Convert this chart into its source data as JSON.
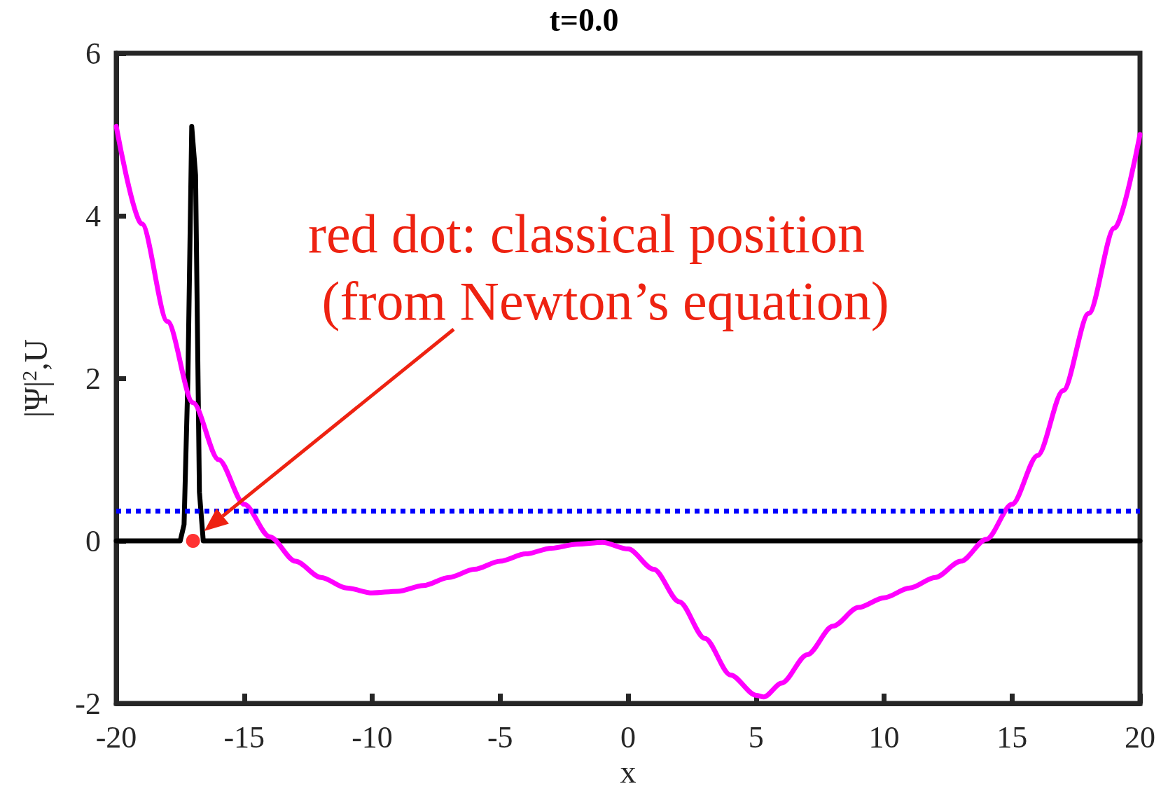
{
  "chart_data": {
    "type": "line",
    "title": "t=0.0",
    "xlabel": "x",
    "ylabel": "|Ψ|$^{2}$,U",
    "xlim": [
      -20,
      20
    ],
    "xticks": [
      -20,
      -15,
      -10,
      -5,
      0,
      5,
      10,
      15,
      20
    ],
    "ylim": [
      -2,
      6
    ],
    "yticks": [
      -2,
      0,
      2,
      4,
      6
    ],
    "grid": false,
    "series": [
      {
        "color": "#000000",
        "x": [
          -20,
          -17.5,
          -17.35,
          -17.2,
          -17.05,
          -16.9,
          -16.75,
          -16.6,
          20
        ],
        "values": [
          0,
          0,
          0.2,
          2,
          5.1,
          4.5,
          0.6,
          0,
          0
        ],
        "marker": "none",
        "line_style": "solid"
      },
      {
        "color": "#ff00ff",
        "x": [
          -20,
          -19,
          -18,
          -17,
          -16,
          -15,
          -14,
          -13,
          -12,
          -11,
          -10,
          -9,
          -8,
          -7,
          -6,
          -5,
          -4,
          -3,
          -2,
          -1,
          0,
          1,
          2,
          3,
          4,
          5,
          5.3,
          6,
          7,
          8,
          9,
          10,
          11,
          12,
          13,
          14,
          15,
          16,
          17,
          18,
          19,
          20
        ],
        "values": [
          5.1,
          3.9,
          2.7,
          1.7,
          1.0,
          0.45,
          0.05,
          -0.25,
          -0.45,
          -0.58,
          -0.64,
          -0.62,
          -0.55,
          -0.45,
          -0.35,
          -0.25,
          -0.16,
          -0.09,
          -0.04,
          -0.02,
          -0.1,
          -0.35,
          -0.75,
          -1.2,
          -1.65,
          -1.9,
          -1.92,
          -1.75,
          -1.4,
          -1.05,
          -0.82,
          -0.7,
          -0.58,
          -0.45,
          -0.25,
          0.02,
          0.45,
          1.05,
          1.85,
          2.8,
          3.85,
          5.0
        ],
        "marker": "none",
        "line_style": "solid"
      },
      {
        "type": "scatter",
        "color": "#ff0000",
        "x": [
          -17
        ],
        "values": [
          0
        ],
        "marker": "circle"
      }
    ],
    "ref_lines": [
      {
        "axis": "y",
        "value": 0.37,
        "color": "#0000ff",
        "line_style": "dotted"
      }
    ],
    "annotations": [
      "red dot: classical position\n (from Newton’s equation)"
    ]
  }
}
